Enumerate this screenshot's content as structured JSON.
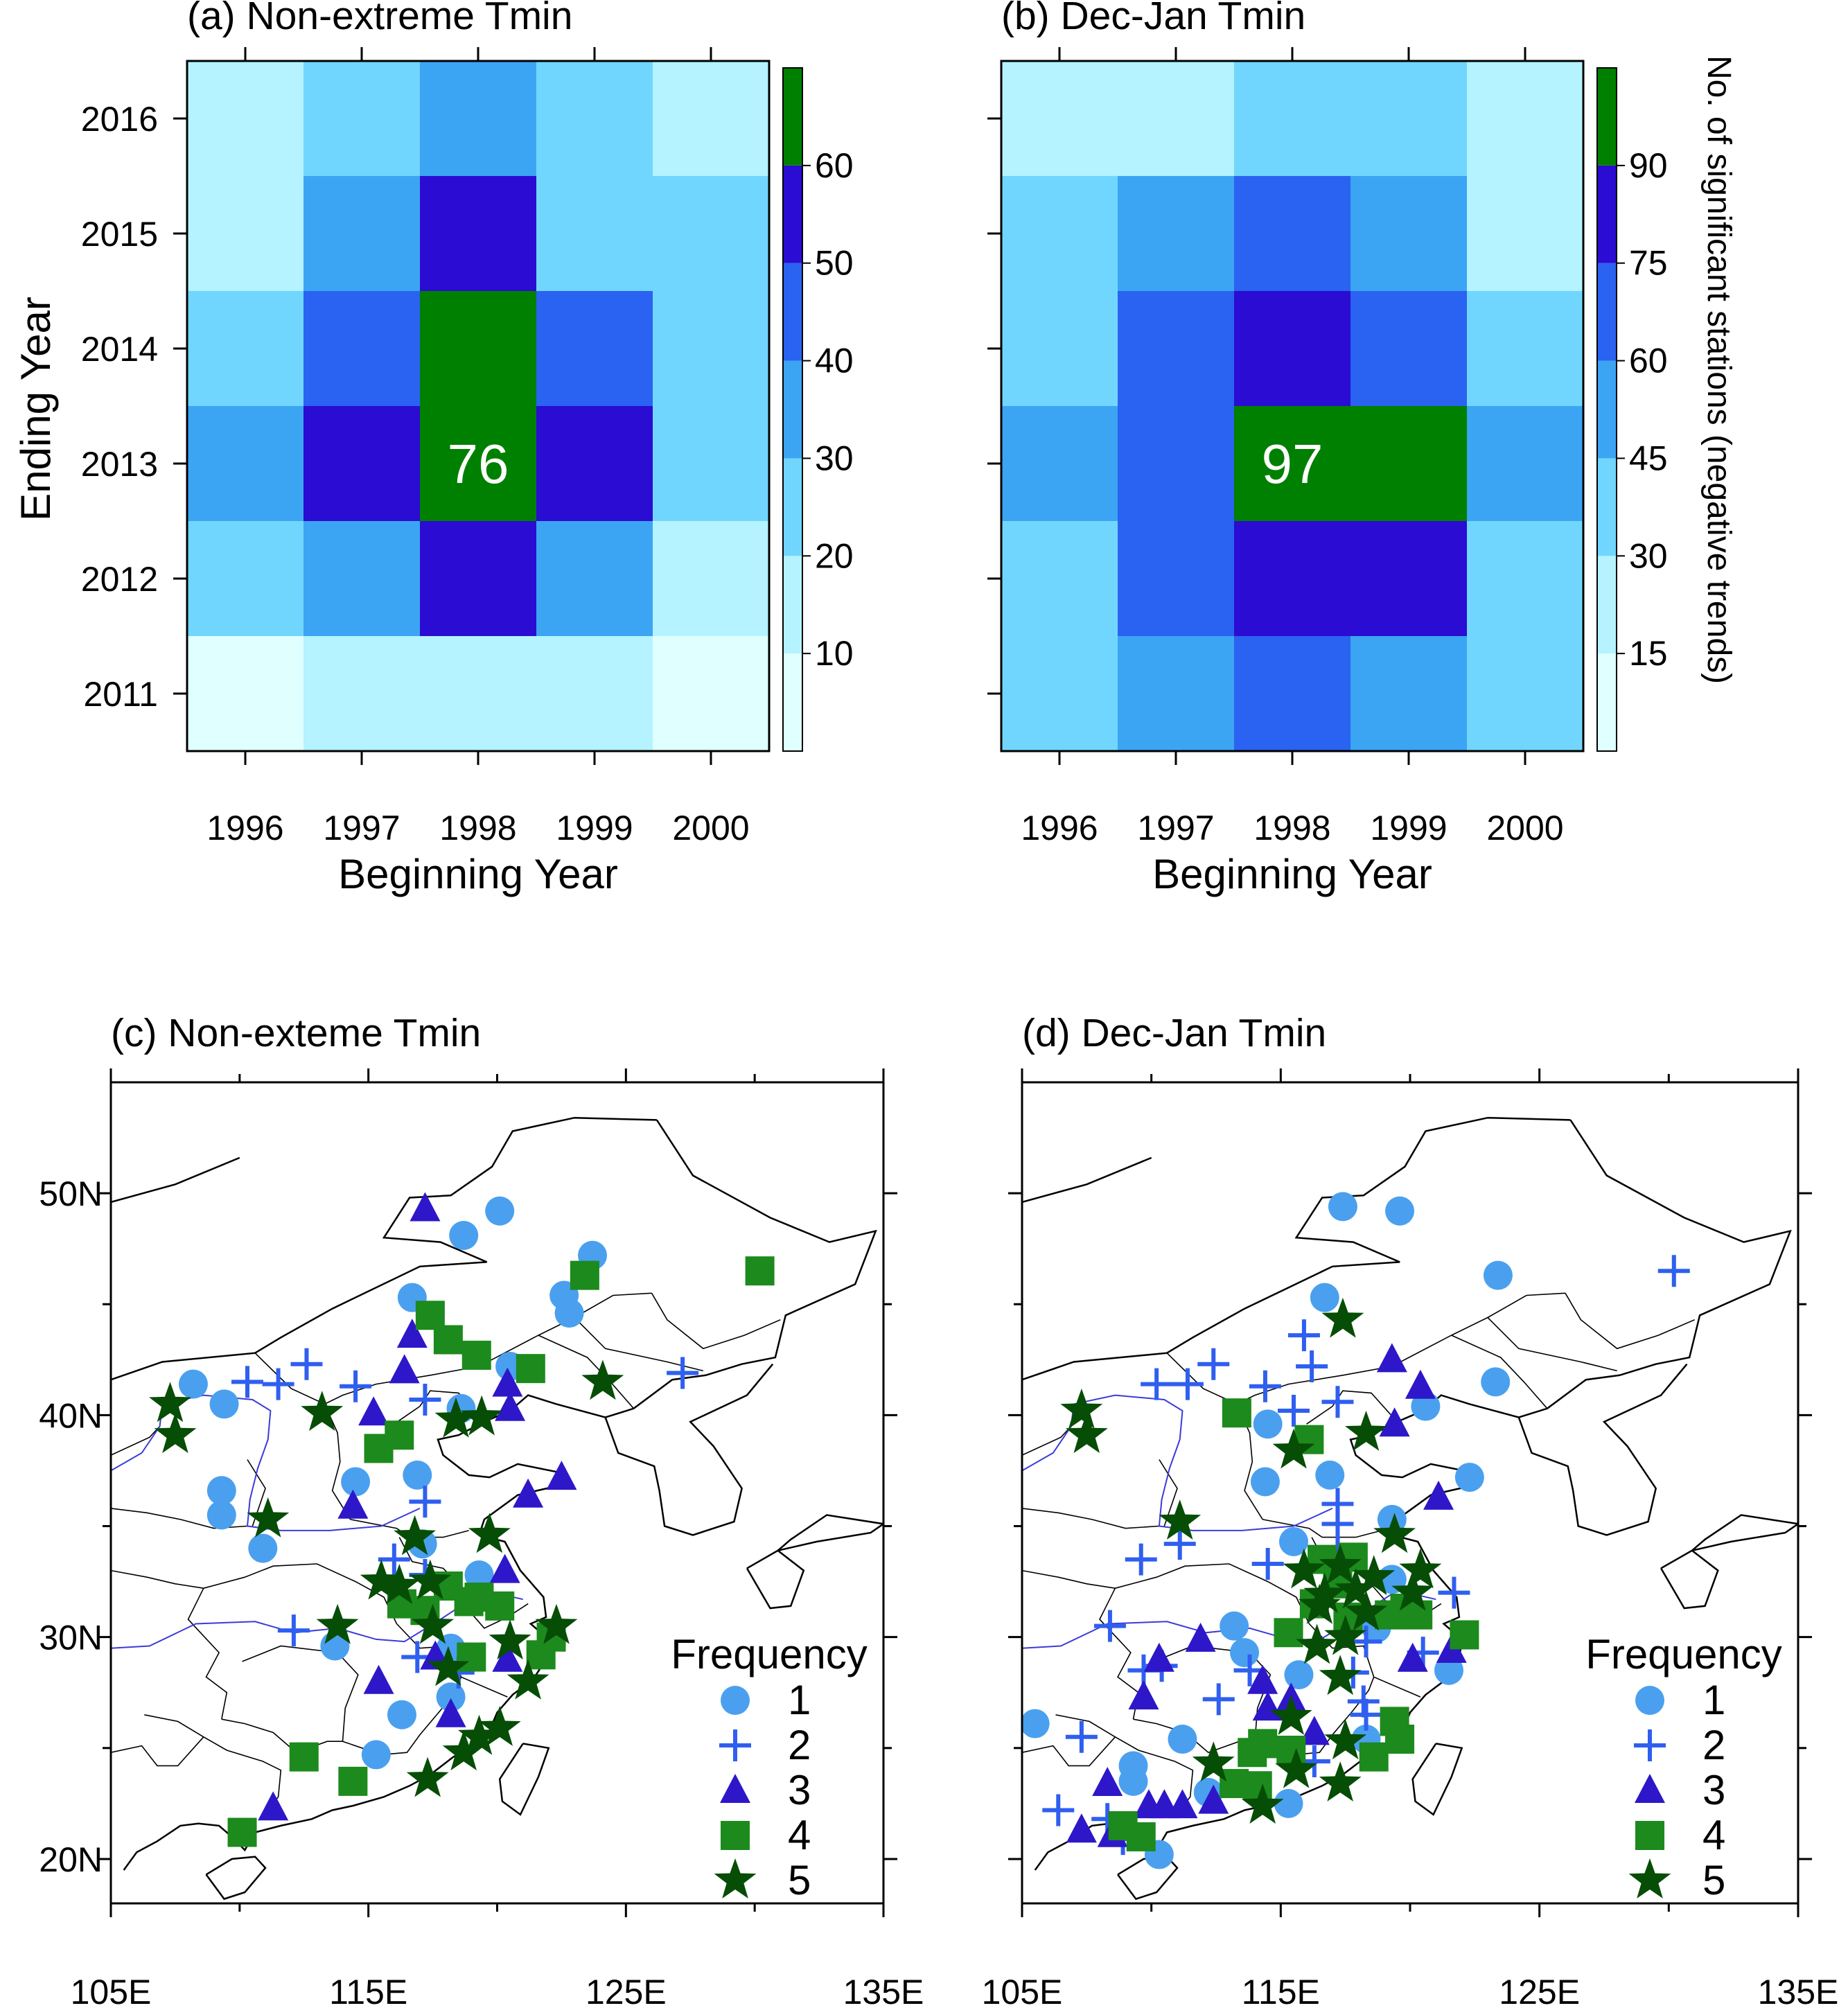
{
  "figure": {
    "colorbar_title": "No. of significant stations (negative trends)",
    "frequency_title": "Frequency"
  },
  "chart_data": [
    {
      "id": "a",
      "type": "heatmap",
      "title": "(a) Non-extreme Tmin",
      "xlabel": "Beginning Year",
      "ylabel": "Ending Year",
      "x_categories": [
        "1996",
        "1997",
        "1998",
        "1999",
        "2000"
      ],
      "y_categories": [
        "2016",
        "2015",
        "2014",
        "2013",
        "2012",
        "2011"
      ],
      "values": [
        [
          12,
          25,
          38,
          28,
          15
        ],
        [
          15,
          38,
          55,
          28,
          22
        ],
        [
          28,
          45,
          65,
          45,
          22
        ],
        [
          38,
          55,
          76,
          55,
          28
        ],
        [
          22,
          38,
          55,
          38,
          15
        ],
        [
          5,
          18,
          18,
          18,
          5
        ]
      ],
      "highlight": {
        "row": 3,
        "col": 2,
        "label": "76"
      },
      "colorbar": {
        "levels": [
          10,
          20,
          30,
          40,
          50,
          60
        ],
        "labels": [
          "10",
          "20",
          "30",
          "40",
          "50",
          "60"
        ],
        "max": 70
      },
      "colors": [
        "#e0ffff",
        "#b4f3ff",
        "#71d6fd",
        "#3ba5f4",
        "#2a62f1",
        "#2a0cd2",
        "#008000"
      ]
    },
    {
      "id": "b",
      "type": "heatmap",
      "title": "(b) Dec-Jan Tmin",
      "xlabel": "Beginning Year",
      "ylabel": "",
      "x_categories": [
        "1996",
        "1997",
        "1998",
        "1999",
        "2000"
      ],
      "y_categories": [
        "2016",
        "2015",
        "2014",
        "2013",
        "2012",
        "2011"
      ],
      "values": [
        [
          20,
          20,
          35,
          35,
          20
        ],
        [
          35,
          55,
          70,
          50,
          20
        ],
        [
          35,
          70,
          85,
          70,
          35
        ],
        [
          50,
          70,
          97,
          97,
          50
        ],
        [
          35,
          70,
          85,
          85,
          35
        ],
        [
          35,
          55,
          70,
          55,
          35
        ]
      ],
      "highlight": {
        "row": 3,
        "col": 2,
        "label": "97"
      },
      "colorbar": {
        "levels": [
          15,
          30,
          45,
          60,
          75,
          90
        ],
        "labels": [
          "15",
          "30",
          "45",
          "60",
          "75",
          "90"
        ],
        "max": 105
      },
      "colors": [
        "#e0ffff",
        "#b4f3ff",
        "#71d6fd",
        "#3ba5f4",
        "#2a62f1",
        "#2a0cd2",
        "#008000"
      ]
    },
    {
      "id": "c",
      "type": "scatter",
      "title": "(c) Non-exteme Tmin",
      "x_ticks": [
        "105E",
        "115E",
        "125E",
        "135E"
      ],
      "y_ticks": [
        "50N",
        "40N",
        "30N",
        "20N"
      ],
      "xlim": [
        105,
        135
      ],
      "ylim": [
        18,
        55
      ],
      "legend_title": "Frequency",
      "legend": [
        {
          "label": "1",
          "marker": "circle",
          "color": "#4aa0ef"
        },
        {
          "label": "2",
          "marker": "plus",
          "color": "#2f5ff0"
        },
        {
          "label": "3",
          "marker": "triangle",
          "color": "#2d17c9"
        },
        {
          "label": "4",
          "marker": "square",
          "color": "#1c8a1c"
        },
        {
          "label": "5",
          "marker": "star",
          "color": "#064d06"
        }
      ],
      "points": {
        "1": [
          [
            120.1,
            49.2
          ],
          [
            118.7,
            48.1
          ],
          [
            123.7,
            47.2
          ],
          [
            122.6,
            45.4
          ],
          [
            122.8,
            44.6
          ],
          [
            116.7,
            45.3
          ],
          [
            108.2,
            41.4
          ],
          [
            109.4,
            40.5
          ],
          [
            120.5,
            42.2
          ],
          [
            118.6,
            40.3
          ],
          [
            114.5,
            37.0
          ],
          [
            116.9,
            37.3
          ],
          [
            109.3,
            36.6
          ],
          [
            109.3,
            35.5
          ],
          [
            110.9,
            34.0
          ],
          [
            117.1,
            34.2
          ],
          [
            119.3,
            32.8
          ],
          [
            113.7,
            29.6
          ],
          [
            118.2,
            29.5
          ],
          [
            118.2,
            27.3
          ],
          [
            116.3,
            26.5
          ],
          [
            115.3,
            24.7
          ]
        ],
        "2": [
          [
            110.3,
            41.5
          ],
          [
            111.5,
            41.4
          ],
          [
            112.6,
            42.3
          ],
          [
            114.5,
            41.3
          ],
          [
            117.2,
            40.7
          ],
          [
            127.2,
            41.9
          ],
          [
            117.2,
            36.1
          ],
          [
            116.0,
            33.5
          ],
          [
            117.2,
            32.8
          ],
          [
            112.1,
            30.3
          ],
          [
            116.9,
            29.1
          ],
          [
            118.5,
            28.4
          ]
        ],
        "3": [
          [
            117.2,
            49.3
          ],
          [
            116.7,
            43.6
          ],
          [
            116.4,
            42.0
          ],
          [
            120.4,
            41.4
          ],
          [
            120.5,
            40.3
          ],
          [
            115.2,
            40.1
          ],
          [
            121.2,
            36.4
          ],
          [
            122.5,
            37.2
          ],
          [
            114.4,
            35.9
          ],
          [
            120.3,
            33.0
          ],
          [
            115.4,
            28.0
          ],
          [
            117.6,
            29.1
          ],
          [
            118.2,
            26.5
          ],
          [
            120.4,
            29.0
          ],
          [
            111.3,
            22.3
          ]
        ],
        "4": [
          [
            130.2,
            46.5
          ],
          [
            123.4,
            46.3
          ],
          [
            117.4,
            44.5
          ],
          [
            118.1,
            43.4
          ],
          [
            119.2,
            42.7
          ],
          [
            121.3,
            42.1
          ],
          [
            115.4,
            38.5
          ],
          [
            116.2,
            39.1
          ],
          [
            118.1,
            32.3
          ],
          [
            118.9,
            31.6
          ],
          [
            120.1,
            31.4
          ],
          [
            119.3,
            31.8
          ],
          [
            117.2,
            31.2
          ],
          [
            116.3,
            31.5
          ],
          [
            119.0,
            29.1
          ],
          [
            122.1,
            30.0
          ],
          [
            121.7,
            29.2
          ],
          [
            112.5,
            24.6
          ],
          [
            114.4,
            23.5
          ],
          [
            110.1,
            21.2
          ]
        ],
        "5": [
          [
            107.3,
            40.5
          ],
          [
            107.5,
            39.1
          ],
          [
            113.2,
            40.1
          ],
          [
            118.4,
            39.8
          ],
          [
            119.4,
            39.9
          ],
          [
            124.1,
            41.5
          ],
          [
            111.1,
            35.3
          ],
          [
            116.8,
            34.5
          ],
          [
            119.7,
            34.6
          ],
          [
            115.5,
            32.5
          ],
          [
            116.2,
            32.3
          ],
          [
            117.4,
            32.5
          ],
          [
            117.5,
            30.5
          ],
          [
            118.1,
            28.6
          ],
          [
            120.5,
            29.8
          ],
          [
            121.2,
            28.0
          ],
          [
            122.3,
            30.5
          ],
          [
            120.1,
            25.9
          ],
          [
            119.3,
            25.5
          ],
          [
            118.7,
            24.8
          ],
          [
            117.3,
            23.6
          ],
          [
            113.8,
            30.5
          ]
        ]
      }
    },
    {
      "id": "d",
      "type": "scatter",
      "title": "(d) Dec-Jan Tmin",
      "x_ticks": [
        "105E",
        "115E",
        "125E",
        "135E"
      ],
      "y_ticks": [
        "50N",
        "40N",
        "30N",
        "20N"
      ],
      "xlim": [
        105,
        135
      ],
      "ylim": [
        18,
        55
      ],
      "legend_title": "Frequency",
      "legend": [
        {
          "label": "1",
          "marker": "circle",
          "color": "#4aa0ef"
        },
        {
          "label": "2",
          "marker": "plus",
          "color": "#2f5ff0"
        },
        {
          "label": "3",
          "marker": "triangle",
          "color": "#2d17c9"
        },
        {
          "label": "4",
          "marker": "square",
          "color": "#1c8a1c"
        },
        {
          "label": "5",
          "marker": "star",
          "color": "#064d06"
        }
      ],
      "points": {
        "1": [
          [
            117.4,
            49.4
          ],
          [
            119.6,
            49.2
          ],
          [
            123.4,
            46.3
          ],
          [
            116.7,
            45.3
          ],
          [
            123.3,
            41.5
          ],
          [
            120.6,
            40.4
          ],
          [
            114.5,
            39.6
          ],
          [
            122.3,
            37.2
          ],
          [
            114.4,
            37.0
          ],
          [
            116.9,
            37.3
          ],
          [
            115.5,
            34.3
          ],
          [
            119.3,
            35.3
          ],
          [
            119.3,
            32.6
          ],
          [
            113.2,
            30.5
          ],
          [
            113.6,
            29.3
          ],
          [
            118.7,
            30.4
          ],
          [
            121.5,
            28.5
          ],
          [
            115.7,
            28.3
          ],
          [
            105.5,
            26.1
          ],
          [
            109.3,
            24.2
          ],
          [
            109.3,
            23.5
          ],
          [
            111.2,
            25.4
          ],
          [
            112.2,
            23.0
          ],
          [
            115.3,
            22.5
          ],
          [
            110.3,
            20.2
          ],
          [
            118.3,
            25.4
          ]
        ],
        "2": [
          [
            130.2,
            46.5
          ],
          [
            115.9,
            43.6
          ],
          [
            116.2,
            42.2
          ],
          [
            112.4,
            42.3
          ],
          [
            110.2,
            41.4
          ],
          [
            111.4,
            41.4
          ],
          [
            114.4,
            41.3
          ],
          [
            115.5,
            40.2
          ],
          [
            117.2,
            40.6
          ],
          [
            117.2,
            36.0
          ],
          [
            117.2,
            35.1
          ],
          [
            117.2,
            33.8
          ],
          [
            114.5,
            33.3
          ],
          [
            109.6,
            33.5
          ],
          [
            111.1,
            34.2
          ],
          [
            108.4,
            30.5
          ],
          [
            109.7,
            28.5
          ],
          [
            110.4,
            28.7
          ],
          [
            112.6,
            27.2
          ],
          [
            113.8,
            28.5
          ],
          [
            118.3,
            29.8
          ],
          [
            117.8,
            28.4
          ],
          [
            118.2,
            27.1
          ],
          [
            118.3,
            26.5
          ],
          [
            120.5,
            29.3
          ],
          [
            121.7,
            32.0
          ],
          [
            107.3,
            25.5
          ],
          [
            106.4,
            22.2
          ],
          [
            108.3,
            21.8
          ],
          [
            108.9,
            20.9
          ],
          [
            116.3,
            24.4
          ]
        ],
        "3": [
          [
            119.3,
            42.5
          ],
          [
            120.4,
            41.3
          ],
          [
            119.4,
            39.6
          ],
          [
            121.1,
            36.3
          ],
          [
            121.6,
            29.4
          ],
          [
            120.1,
            29.0
          ],
          [
            111.9,
            29.9
          ],
          [
            109.7,
            27.3
          ],
          [
            110.3,
            29.0
          ],
          [
            114.5,
            26.8
          ],
          [
            114.3,
            28.0
          ],
          [
            115.4,
            27.2
          ],
          [
            116.3,
            25.7
          ],
          [
            108.3,
            23.4
          ],
          [
            109.9,
            22.4
          ],
          [
            110.5,
            22.4
          ],
          [
            111.2,
            22.4
          ],
          [
            112.4,
            22.6
          ],
          [
            107.3,
            21.3
          ],
          [
            108.5,
            21.1
          ]
        ],
        "4": [
          [
            113.3,
            40.1
          ],
          [
            116.1,
            38.9
          ],
          [
            115.3,
            30.2
          ],
          [
            116.3,
            31.5
          ],
          [
            117.2,
            32.4
          ],
          [
            116.6,
            33.5
          ],
          [
            117.8,
            33.6
          ],
          [
            119.2,
            31.0
          ],
          [
            119.8,
            31.3
          ],
          [
            120.3,
            31.0
          ],
          [
            122.1,
            30.1
          ],
          [
            119.4,
            26.2
          ],
          [
            119.6,
            25.4
          ],
          [
            118.6,
            24.6
          ],
          [
            114.3,
            25.2
          ],
          [
            115.4,
            24.9
          ],
          [
            113.2,
            23.4
          ],
          [
            114.1,
            23.3
          ],
          [
            113.9,
            24.8
          ],
          [
            108.9,
            21.5
          ],
          [
            109.6,
            21.0
          ],
          [
            117.6,
            30.9
          ]
        ],
        "5": [
          [
            107.3,
            40.2
          ],
          [
            107.5,
            39.1
          ],
          [
            117.4,
            44.3
          ],
          [
            115.5,
            38.4
          ],
          [
            118.3,
            39.2
          ],
          [
            111.1,
            35.2
          ],
          [
            115.9,
            33.0
          ],
          [
            117.3,
            33.2
          ],
          [
            117.9,
            32.1
          ],
          [
            116.5,
            31.4
          ],
          [
            118.3,
            31.1
          ],
          [
            119.4,
            34.6
          ],
          [
            120.4,
            33.0
          ],
          [
            120.1,
            32.0
          ],
          [
            117.5,
            30.0
          ],
          [
            116.4,
            29.6
          ],
          [
            117.3,
            28.2
          ],
          [
            115.4,
            26.4
          ],
          [
            117.5,
            25.3
          ],
          [
            117.3,
            23.4
          ],
          [
            115.6,
            24.0
          ],
          [
            114.3,
            22.4
          ],
          [
            112.4,
            24.3
          ],
          [
            116.7,
            31.9
          ],
          [
            118.6,
            32.7
          ]
        ]
      }
    }
  ]
}
